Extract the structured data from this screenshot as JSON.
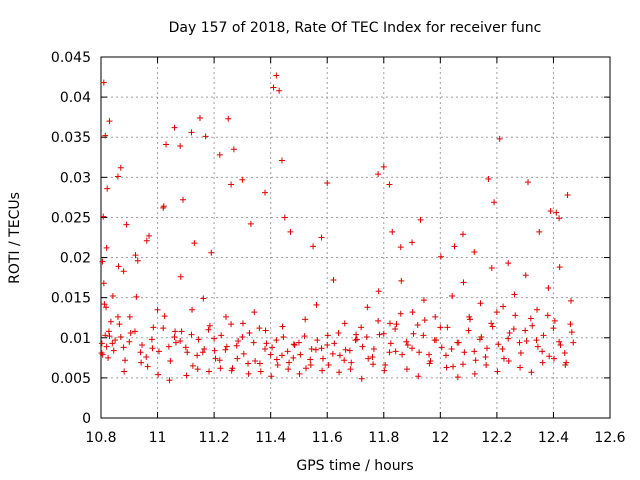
{
  "chart_data": {
    "type": "scatter",
    "title": "Day 157 of 2018, Rate Of TEC Index for receiver func",
    "xlabel": "GPS time / hours",
    "ylabel": "ROTI / TECUs",
    "xlim": [
      10.8,
      12.6
    ],
    "ylim": [
      0,
      0.045
    ],
    "xticks": [
      "10.8",
      "11",
      "11.2",
      "11.4",
      "11.6",
      "11.8",
      "12",
      "12.2",
      "12.4",
      "12.6"
    ],
    "yticks": [
      "0",
      "0.005",
      "0.01",
      "0.015",
      "0.02",
      "0.025",
      "0.03",
      "0.035",
      "0.04",
      "0.045"
    ],
    "grid": true,
    "marker": "+",
    "color": "#e00000",
    "series": [
      {
        "name": "ROTI",
        "x": [
          10.802,
          10.805,
          10.81,
          10.812,
          10.815,
          10.82,
          10.825,
          10.83,
          10.835,
          10.84,
          10.85,
          10.86,
          10.87,
          10.88,
          10.9,
          10.92,
          10.94,
          10.96,
          10.98,
          11.0,
          11.02,
          11.04,
          11.06,
          11.08,
          11.1,
          11.12,
          11.14,
          11.16,
          11.18,
          11.2,
          11.22,
          11.24,
          11.26,
          11.28,
          11.3,
          11.32,
          11.34,
          11.36,
          11.38,
          11.4,
          11.42,
          11.44,
          11.46,
          11.48,
          11.5,
          11.52,
          11.54,
          11.56,
          11.58,
          11.6,
          11.62,
          11.64,
          11.66,
          11.68,
          11.7,
          11.72,
          11.74,
          11.76,
          11.78,
          11.8,
          11.82,
          11.84,
          11.86,
          11.88,
          11.9,
          11.92,
          11.94,
          11.96,
          11.98,
          12.0,
          12.02,
          12.04,
          12.06,
          12.08,
          12.1,
          12.12,
          12.14,
          12.16,
          12.18,
          12.2,
          12.22,
          12.24,
          12.26,
          12.28,
          12.3,
          12.32,
          12.34,
          12.36,
          12.38,
          12.4,
          12.42,
          12.44,
          12.46,
          12.47,
          10.803,
          10.808,
          10.818,
          10.828,
          10.845,
          10.865,
          10.885,
          10.905,
          10.925,
          10.945,
          10.965,
          10.985,
          11.005,
          11.025,
          11.045,
          11.065,
          11.085,
          11.105,
          11.125,
          11.145,
          11.165,
          11.185,
          11.205,
          11.225,
          11.245,
          11.265,
          11.285,
          11.305,
          11.325,
          11.345,
          11.365,
          11.385,
          11.405,
          11.425,
          11.445,
          11.465,
          11.485,
          11.505,
          11.525,
          11.545,
          11.565,
          11.585,
          11.605,
          11.625,
          11.645,
          11.665,
          11.685,
          11.705,
          11.725,
          11.745,
          11.765,
          11.785,
          11.805,
          11.825,
          11.845,
          11.865,
          11.885,
          11.905,
          11.925,
          11.945,
          11.965,
          11.985,
          12.005,
          12.025,
          12.045,
          12.065,
          12.085,
          12.105,
          12.125,
          12.145,
          12.165,
          12.185,
          12.205,
          12.225,
          12.245,
          12.265,
          12.285,
          12.305,
          12.325,
          12.345,
          12.365,
          12.385,
          12.405,
          12.425,
          12.445,
          12.465,
          10.806,
          10.822,
          10.842,
          10.862,
          10.882,
          10.902,
          10.922,
          10.942,
          10.962,
          10.982,
          11.002,
          11.022,
          11.042,
          11.062,
          11.082,
          11.102,
          11.122,
          11.142,
          11.162,
          11.182,
          11.202,
          11.222,
          11.242,
          11.262,
          11.282,
          11.302,
          11.322,
          11.342,
          11.362,
          11.382,
          11.402,
          11.422,
          11.442,
          11.462,
          11.482,
          11.502,
          11.522,
          11.542,
          11.562,
          11.582,
          11.602,
          11.622,
          11.642,
          11.662,
          11.682,
          11.702,
          11.722,
          11.742,
          11.762,
          11.782,
          11.802,
          11.822,
          11.842,
          11.862,
          11.882,
          11.902,
          11.922,
          11.942,
          11.962,
          11.982,
          12.002,
          12.022,
          12.042,
          12.062,
          12.082,
          12.102,
          12.122,
          12.142,
          12.162,
          12.182,
          12.202,
          12.222,
          12.242,
          12.262,
          12.282,
          12.302,
          12.322,
          12.342,
          12.362,
          12.382,
          12.402,
          12.422,
          12.442,
          12.462,
          10.81,
          10.815,
          10.83,
          10.86,
          10.87,
          10.89,
          11.02,
          11.06,
          11.08,
          11.12,
          11.15,
          11.17,
          11.22,
          11.25,
          11.27,
          11.3,
          11.41,
          11.42,
          11.43,
          11.44,
          11.45,
          11.78,
          11.8,
          11.82,
          12.17,
          12.19,
          12.21,
          12.31,
          12.39,
          12.42,
          10.82,
          10.88,
          10.93,
          10.97,
          11.03,
          11.09,
          11.13,
          11.19,
          11.26,
          11.33,
          11.38,
          11.47,
          11.55,
          11.58,
          11.6,
          11.83,
          11.86,
          11.9,
          11.93,
          12.05,
          12.08,
          12.12,
          12.24,
          12.35,
          12.41,
          12.45
        ],
        "y": [
          0.0081,
          0.0195,
          0.0168,
          0.0142,
          0.0103,
          0.0089,
          0.0075,
          0.0102,
          0.012,
          0.0093,
          0.0097,
          0.0126,
          0.0101,
          0.0088,
          0.0095,
          0.0108,
          0.0082,
          0.0076,
          0.0098,
          0.0135,
          0.0112,
          0.0089,
          0.0101,
          0.0096,
          0.0088,
          0.0104,
          0.0078,
          0.0082,
          0.011,
          0.0099,
          0.0072,
          0.0085,
          0.0117,
          0.009,
          0.0101,
          0.0068,
          0.0094,
          0.0112,
          0.0086,
          0.0079,
          0.0097,
          0.0078,
          0.0083,
          0.0075,
          0.0094,
          0.0102,
          0.0073,
          0.0085,
          0.0087,
          0.0091,
          0.008,
          0.0106,
          0.0072,
          0.0084,
          0.0097,
          0.0113,
          0.0101,
          0.0076,
          0.0121,
          0.0105,
          0.0082,
          0.0111,
          0.013,
          0.0095,
          0.0087,
          0.0116,
          0.0103,
          0.0079,
          0.0097,
          0.0113,
          0.0078,
          0.0086,
          0.0094,
          0.0067,
          0.0109,
          0.0083,
          0.0098,
          0.0076,
          0.0118,
          0.0132,
          0.0086,
          0.0099,
          0.0111,
          0.0094,
          0.0109,
          0.0124,
          0.0097,
          0.0083,
          0.0128,
          0.0112,
          0.0095,
          0.0081,
          0.0117,
          0.0094,
          0.0093,
          0.0251,
          0.0138,
          0.0108,
          0.0084,
          0.0117,
          0.0072,
          0.0106,
          0.0151,
          0.0091,
          0.0064,
          0.0113,
          0.0083,
          0.0127,
          0.0071,
          0.0094,
          0.0108,
          0.0082,
          0.0065,
          0.0098,
          0.0086,
          0.0115,
          0.0074,
          0.0103,
          0.0089,
          0.0062,
          0.0096,
          0.008,
          0.0106,
          0.0071,
          0.0058,
          0.0093,
          0.0088,
          0.0066,
          0.0101,
          0.0069,
          0.0091,
          0.0079,
          0.0062,
          0.0086,
          0.0097,
          0.0074,
          0.0066,
          0.0093,
          0.0078,
          0.0085,
          0.0069,
          0.0098,
          0.0089,
          0.0074,
          0.0086,
          0.0104,
          0.0066,
          0.0093,
          0.0117,
          0.0079,
          0.0091,
          0.0105,
          0.0082,
          0.0122,
          0.0071,
          0.0097,
          0.0088,
          0.0113,
          0.0064,
          0.0094,
          0.0082,
          0.0123,
          0.0072,
          0.0101,
          0.0087,
          0.0114,
          0.0092,
          0.0074,
          0.0106,
          0.0128,
          0.0081,
          0.0096,
          0.0115,
          0.0089,
          0.0103,
          0.0077,
          0.0121,
          0.0091,
          0.0069,
          0.0107,
          0.0079,
          0.0286,
          0.0152,
          0.0189,
          0.0058,
          0.0126,
          0.0203,
          0.0069,
          0.0221,
          0.0087,
          0.0054,
          0.0264,
          0.0047,
          0.0108,
          0.0176,
          0.0053,
          0.0135,
          0.0061,
          0.0149,
          0.0058,
          0.0084,
          0.0062,
          0.0126,
          0.0059,
          0.0074,
          0.0118,
          0.0055,
          0.0132,
          0.0068,
          0.0109,
          0.0052,
          0.0073,
          0.0114,
          0.0061,
          0.0092,
          0.0055,
          0.0123,
          0.0066,
          0.0141,
          0.0059,
          0.0103,
          0.0172,
          0.0057,
          0.0118,
          0.0061,
          0.0104,
          0.0049,
          0.0138,
          0.0067,
          0.0158,
          0.0059,
          0.0118,
          0.0083,
          0.0171,
          0.0061,
          0.0132,
          0.0052,
          0.0147,
          0.0068,
          0.0126,
          0.0201,
          0.0063,
          0.0152,
          0.0051,
          0.0169,
          0.0126,
          0.0055,
          0.0143,
          0.0066,
          0.0187,
          0.0058,
          0.0139,
          0.0071,
          0.0154,
          0.0063,
          0.0178,
          0.0057,
          0.0135,
          0.0069,
          0.0162,
          0.0074,
          0.0188,
          0.0066,
          0.0146,
          0.0418,
          0.0352,
          0.037,
          0.0301,
          0.0312,
          0.0241,
          0.0262,
          0.0362,
          0.0339,
          0.0356,
          0.0374,
          0.0351,
          0.0328,
          0.0373,
          0.0335,
          0.0297,
          0.0412,
          0.0427,
          0.0408,
          0.0321,
          0.025,
          0.0304,
          0.0313,
          0.0291,
          0.0298,
          0.0269,
          0.0348,
          0.0294,
          0.0258,
          0.0249,
          0.0212,
          0.0183,
          0.0196,
          0.0227,
          0.0341,
          0.0272,
          0.0218,
          0.0206,
          0.0291,
          0.0242,
          0.0281,
          0.0232,
          0.0214,
          0.0225,
          0.0293,
          0.0232,
          0.0213,
          0.0219,
          0.0247,
          0.0214,
          0.0229,
          0.0207,
          0.0193,
          0.0232,
          0.0256,
          0.0278
        ]
      }
    ]
  }
}
